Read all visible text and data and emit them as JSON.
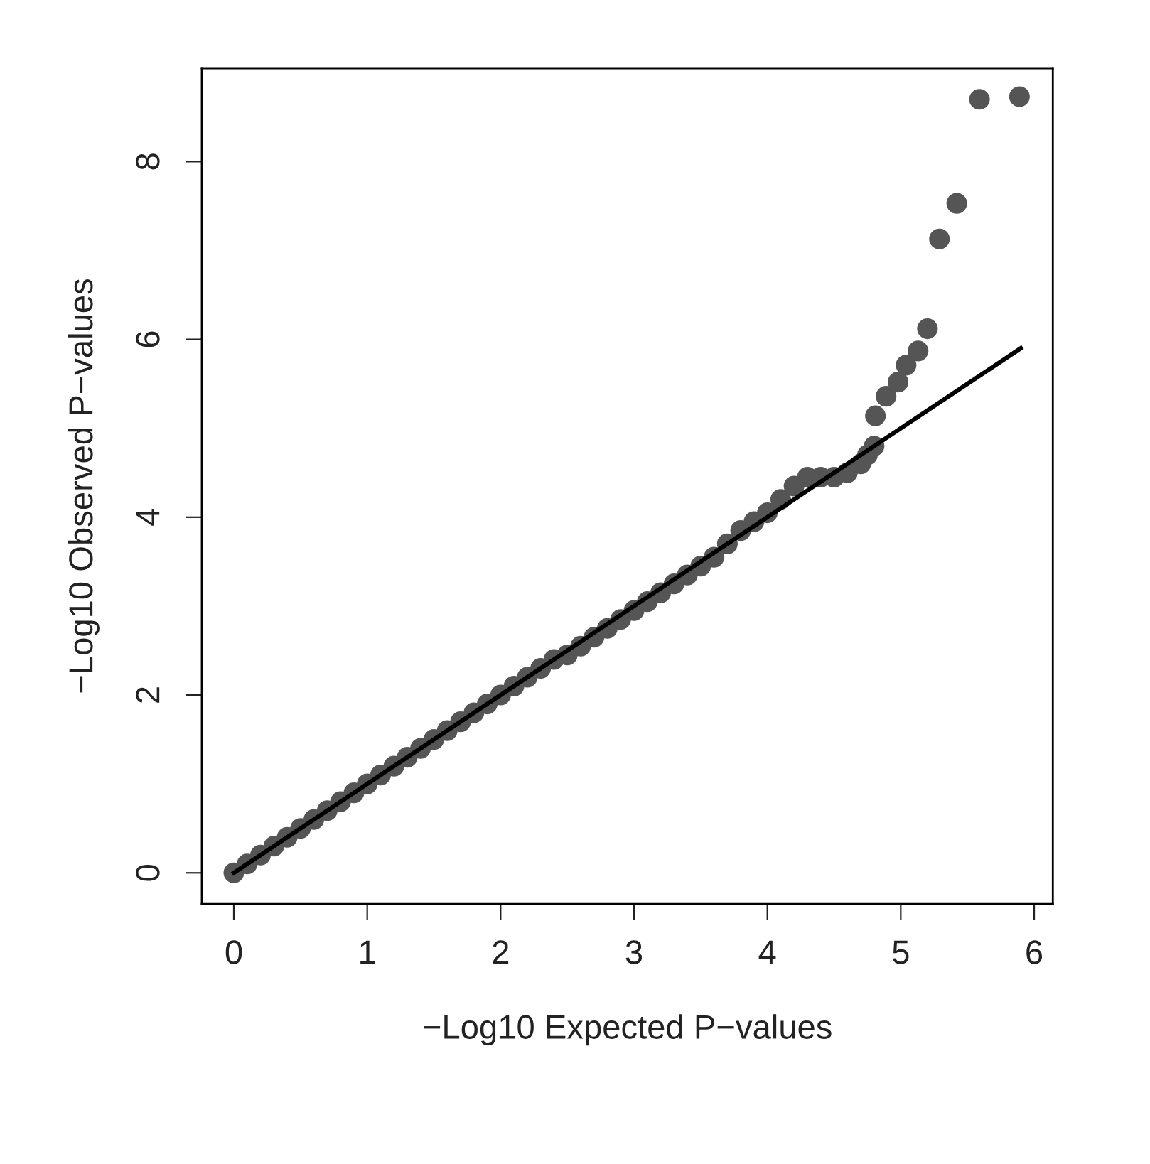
{
  "chart_data": {
    "type": "scatter",
    "xlabel": "−Log10 Expected P−values",
    "ylabel": "−Log10 Observed P−values",
    "xlim": [
      -0.24,
      6.14
    ],
    "ylim": [
      -0.35,
      9.05
    ],
    "xticks": [
      0,
      1,
      2,
      3,
      4,
      5,
      6
    ],
    "yticks": [
      0,
      2,
      4,
      6,
      8
    ],
    "grid": false,
    "marker": "circle",
    "series": [
      {
        "color": "#555555",
        "x": [
          0,
          0.1,
          0.2,
          0.3,
          0.4,
          0.5,
          0.6,
          0.7,
          0.8,
          0.9,
          1.0,
          1.1,
          1.2,
          1.3,
          1.4,
          1.5,
          1.6,
          1.7,
          1.8,
          1.9,
          2.0,
          2.1,
          2.2,
          2.3,
          2.4,
          2.5,
          2.6,
          2.7,
          2.8,
          2.9,
          3.0,
          3.1,
          3.2,
          3.3,
          3.4,
          3.5,
          3.6,
          3.7,
          3.8,
          3.9,
          4.0,
          4.1,
          4.2,
          4.3,
          4.4,
          4.5,
          4.6,
          4.7,
          4.75,
          4.8,
          4.81,
          4.89,
          4.98,
          5.04,
          5.13,
          5.2,
          5.29,
          5.42,
          5.59,
          5.89
        ],
        "values": [
          0,
          0.1,
          0.2,
          0.3,
          0.4,
          0.5,
          0.6,
          0.7,
          0.8,
          0.9,
          1.0,
          1.1,
          1.2,
          1.3,
          1.4,
          1.5,
          1.6,
          1.7,
          1.8,
          1.9,
          2.0,
          2.1,
          2.2,
          2.3,
          2.4,
          2.45,
          2.55,
          2.65,
          2.75,
          2.85,
          2.95,
          3.05,
          3.15,
          3.25,
          3.35,
          3.45,
          3.55,
          3.7,
          3.85,
          3.95,
          4.05,
          4.2,
          4.35,
          4.45,
          4.45,
          4.45,
          4.5,
          4.6,
          4.7,
          4.8,
          5.14,
          5.36,
          5.52,
          5.71,
          5.87,
          6.12,
          7.13,
          7.53,
          8.7,
          8.73
        ]
      },
      {
        "type": "line",
        "color": "#000000",
        "line_style": "solid",
        "marker": "none",
        "x": [
          0,
          5.9
        ],
        "values": [
          0,
          5.9
        ]
      }
    ]
  }
}
